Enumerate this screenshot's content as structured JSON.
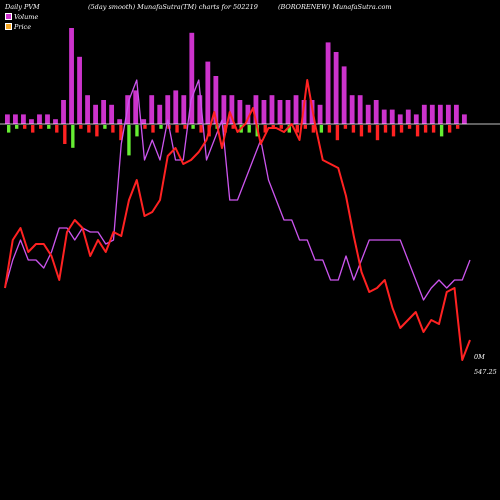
{
  "header": {
    "left": "Daily PVM",
    "smooth": "(5day smooth) MunafaSutra(TM) charts for 502219",
    "right": "(BORORENEW) MunafaSutra.com"
  },
  "legend": [
    {
      "label": "Volume",
      "color": "#cc33cc"
    },
    {
      "label": "Price",
      "color": "#f5a623"
    }
  ],
  "colors": {
    "volume": "#cc33cc",
    "pos": "#66ee33",
    "neg": "#ff2222",
    "price": "#ff2222",
    "volume_line": "#cc55ee",
    "baseline": "#ffffff"
  },
  "chart_data": {
    "type": "bar",
    "volume_label": "0M",
    "price_label": "547.25",
    "volume_bars": [
      2,
      2,
      2,
      1,
      2,
      2,
      1,
      5,
      20,
      14,
      6,
      4,
      5,
      4,
      1,
      6,
      7,
      1,
      6,
      4,
      6,
      7,
      6,
      19,
      6,
      13,
      10,
      6,
      6,
      5,
      4,
      6,
      5,
      6,
      5,
      5,
      6,
      5,
      5,
      4,
      17,
      15,
      12,
      6,
      6,
      4,
      5,
      3,
      3,
      2,
      3,
      2,
      4,
      4,
      4,
      4,
      4,
      2
    ],
    "change_bars": [
      -2,
      -1,
      -1,
      -2,
      -1,
      -1,
      -2,
      -5,
      -6,
      -1,
      -2,
      -3,
      -1,
      -2,
      -4,
      -8,
      -3,
      -1,
      -2,
      -1,
      -1,
      -2,
      -1,
      -1,
      -2,
      -3,
      -1,
      -2,
      -1,
      -2,
      -2,
      -3,
      -2,
      -1,
      -1,
      -2,
      -2,
      -1,
      -2,
      -2,
      -2,
      -4,
      -1,
      -2,
      -3,
      -2,
      -4,
      -2,
      -3,
      -2,
      -1,
      -3,
      -2,
      -2,
      -3,
      -2,
      -1
    ],
    "change_colors": [
      "pos",
      "pos",
      "neg",
      "neg",
      "neg",
      "pos",
      "neg",
      "neg",
      "pos",
      "neg",
      "neg",
      "neg",
      "pos",
      "neg",
      "neg",
      "pos",
      "pos",
      "neg",
      "neg",
      "pos",
      "neg",
      "neg",
      "neg",
      "pos",
      "neg",
      "neg",
      "pos",
      "neg",
      "neg",
      "pos",
      "pos",
      "pos",
      "neg",
      "neg",
      "neg",
      "pos",
      "neg",
      "neg",
      "neg",
      "pos",
      "neg",
      "neg",
      "neg",
      "neg",
      "neg",
      "neg",
      "neg",
      "neg",
      "neg",
      "neg",
      "neg",
      "neg",
      "neg",
      "neg",
      "pos",
      "neg",
      "neg"
    ],
    "price_line": [
      548,
      560,
      563,
      557,
      559,
      559,
      556,
      550,
      562,
      565,
      563,
      556,
      560,
      557,
      562,
      561,
      570,
      575,
      566,
      567,
      570,
      581,
      583,
      579,
      580,
      582,
      585,
      592,
      583,
      592,
      587,
      589,
      593,
      584,
      588,
      588,
      587,
      589,
      585,
      600,
      589,
      580,
      579,
      578,
      571,
      561,
      552,
      547,
      548,
      550,
      543,
      538,
      540,
      542,
      537,
      540,
      539,
      547,
      548,
      530,
      535
    ],
    "volume_line": [
      548,
      555,
      560,
      555,
      555,
      553,
      557,
      563,
      563,
      560,
      563,
      562,
      562,
      559,
      560,
      584,
      595,
      600,
      580,
      585,
      580,
      590,
      580,
      580,
      595,
      600,
      580,
      585,
      590,
      570,
      570,
      575,
      580,
      585,
      575,
      570,
      565,
      565,
      560,
      560,
      555,
      555,
      550,
      550,
      556,
      550,
      555,
      560,
      560,
      560,
      560,
      560,
      555,
      550,
      545,
      548,
      550,
      548,
      550,
      550,
      555
    ]
  }
}
